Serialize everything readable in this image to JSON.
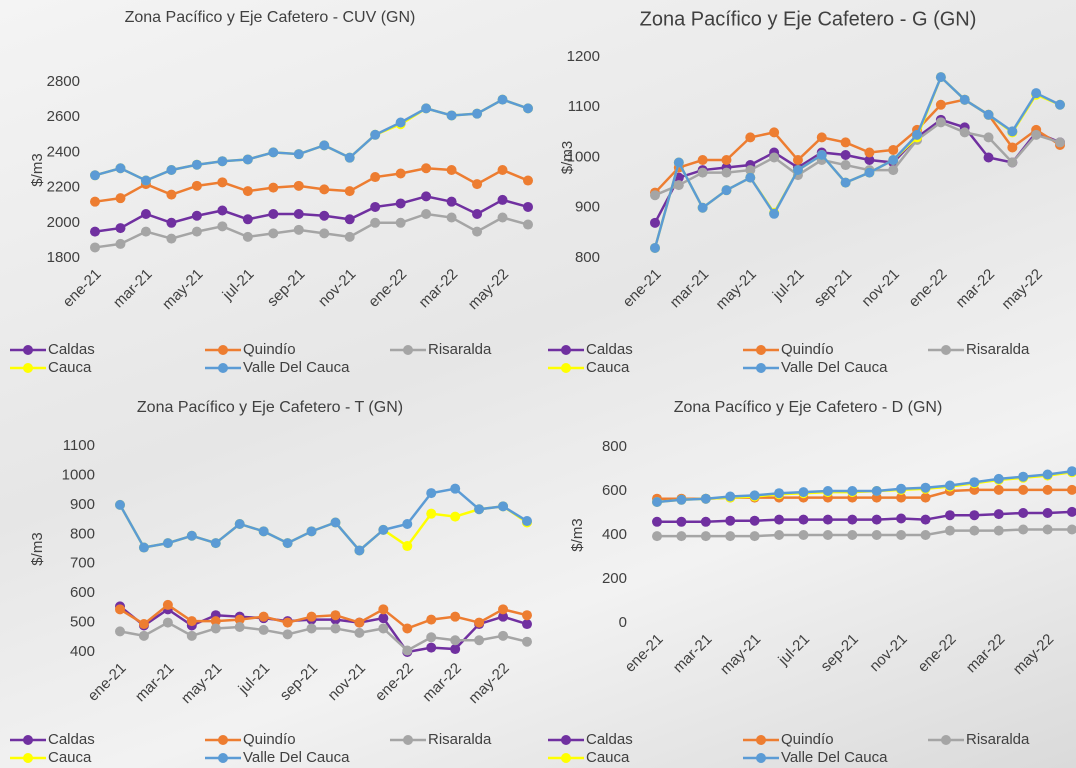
{
  "chart_data": [
    {
      "type": "line",
      "title": "Zona Pacífico y Eje Cafetero  - CUV (GN)",
      "y_label": "$/m3",
      "categories": [
        "ene-21",
        null,
        "mar-21",
        null,
        "may-21",
        null,
        "jul-21",
        null,
        "sep-21",
        null,
        "nov-21",
        null,
        "ene-22",
        null,
        "mar-22",
        null,
        "may-22",
        null
      ],
      "ylim": [
        1800,
        2800
      ],
      "yticks": [
        1800,
        2000,
        2200,
        2400,
        2600,
        2800
      ],
      "series": [
        {
          "name": "Caldas",
          "color": "#7030a0",
          "values": [
            1950,
            1970,
            2050,
            2000,
            2040,
            2070,
            2020,
            2050,
            2050,
            2040,
            2020,
            2090,
            2110,
            2150,
            2120,
            2050,
            2130,
            2090
          ]
        },
        {
          "name": "Quindío",
          "color": "#ed7d31",
          "values": [
            2120,
            2140,
            2220,
            2160,
            2210,
            2230,
            2180,
            2200,
            2210,
            2190,
            2180,
            2260,
            2280,
            2310,
            2300,
            2220,
            2300,
            2240
          ]
        },
        {
          "name": "Risaralda",
          "color": "#a5a5a5",
          "values": [
            1860,
            1880,
            1950,
            1910,
            1950,
            1980,
            1920,
            1940,
            1960,
            1940,
            1920,
            2000,
            2000,
            2050,
            2030,
            1950,
            2030,
            1990
          ]
        },
        {
          "name": "Cauca",
          "color": "#ffff00",
          "values": [
            2270,
            2310,
            2240,
            2300,
            2330,
            2350,
            2360,
            2400,
            2390,
            2440,
            2370,
            2500,
            2560,
            2650,
            2610,
            2620,
            2700,
            2650
          ]
        },
        {
          "name": "Valle Del Cauca",
          "color": "#5b9bd5",
          "values": [
            2270,
            2310,
            2240,
            2300,
            2330,
            2350,
            2360,
            2400,
            2390,
            2440,
            2370,
            2500,
            2570,
            2650,
            2610,
            2620,
            2700,
            2650
          ]
        }
      ]
    },
    {
      "type": "line",
      "title": "Zona Pacífico y Eje Cafetero  - G (GN)",
      "y_label": "$/m3",
      "categories": [
        "ene-21",
        null,
        "mar-21",
        null,
        "may-21",
        null,
        "jul-21",
        null,
        "sep-21",
        null,
        "nov-21",
        null,
        "ene-22",
        null,
        "mar-22",
        null,
        "may-22",
        null
      ],
      "ylim": [
        800,
        1200
      ],
      "yticks": [
        800,
        900,
        1000,
        1100,
        1200
      ],
      "series": [
        {
          "name": "Caldas",
          "color": "#7030a0",
          "values": [
            870,
            960,
            975,
            980,
            985,
            1010,
            980,
            1010,
            1005,
            995,
            990,
            1040,
            1075,
            1060,
            1000,
            990,
            1050,
            1030
          ]
        },
        {
          "name": "Quindío",
          "color": "#ed7d31",
          "values": [
            930,
            980,
            995,
            995,
            1040,
            1050,
            995,
            1040,
            1030,
            1010,
            1015,
            1055,
            1105,
            1115,
            1085,
            1020,
            1055,
            1025
          ]
        },
        {
          "name": "Risaralda",
          "color": "#a5a5a5",
          "values": [
            925,
            945,
            970,
            970,
            975,
            1000,
            965,
            995,
            985,
            975,
            975,
            1035,
            1070,
            1050,
            1040,
            990,
            1045,
            1030
          ]
        },
        {
          "name": "Cauca",
          "color": "#ffff00",
          "values": [
            820,
            990,
            900,
            935,
            960,
            890,
            975,
            1005,
            950,
            970,
            995,
            1040,
            1160,
            1115,
            1085,
            1050,
            1125,
            1105
          ]
        },
        {
          "name": "Valle Del Cauca",
          "color": "#5b9bd5",
          "values": [
            820,
            990,
            900,
            935,
            960,
            888,
            975,
            1005,
            950,
            970,
            995,
            1045,
            1160,
            1115,
            1085,
            1052,
            1128,
            1105
          ]
        }
      ]
    },
    {
      "type": "line",
      "title": "Zona Pacífico y Eje Cafetero  - T (GN)",
      "y_label": "$/m3",
      "categories": [
        "ene-21",
        null,
        "mar-21",
        null,
        "may-21",
        null,
        "jul-21",
        null,
        "sep-21",
        null,
        "nov-21",
        null,
        "ene-22",
        null,
        "mar-22",
        null,
        "may-22",
        null
      ],
      "ylim": [
        400,
        1100
      ],
      "yticks": [
        400,
        500,
        600,
        700,
        800,
        900,
        1000,
        1100
      ],
      "series": [
        {
          "name": "Caldas",
          "color": "#7030a0",
          "values": [
            555,
            490,
            545,
            490,
            525,
            520,
            515,
            505,
            510,
            510,
            500,
            515,
            400,
            415,
            410,
            495,
            520,
            495
          ]
        },
        {
          "name": "Quindío",
          "color": "#ed7d31",
          "values": [
            545,
            495,
            560,
            505,
            505,
            510,
            520,
            500,
            520,
            525,
            500,
            545,
            480,
            510,
            520,
            500,
            545,
            525
          ]
        },
        {
          "name": "Risaralda",
          "color": "#a5a5a5",
          "values": [
            470,
            455,
            500,
            455,
            480,
            485,
            475,
            460,
            480,
            480,
            465,
            480,
            405,
            450,
            440,
            440,
            455,
            435
          ]
        },
        {
          "name": "Cauca",
          "color": "#ffff00",
          "values": [
            900,
            755,
            770,
            795,
            770,
            835,
            810,
            770,
            810,
            840,
            745,
            815,
            760,
            870,
            860,
            885,
            895,
            840
          ]
        },
        {
          "name": "Valle Del Cauca",
          "color": "#5b9bd5",
          "values": [
            900,
            755,
            770,
            795,
            770,
            835,
            810,
            770,
            810,
            840,
            745,
            815,
            835,
            940,
            955,
            885,
            895,
            845
          ]
        }
      ]
    },
    {
      "type": "line",
      "title": "Zona Pacífico y Eje Cafetero  - D (GN)",
      "y_label": "$/m3",
      "categories": [
        "ene-21",
        null,
        "mar-21",
        null,
        "may-21",
        null,
        "jul-21",
        null,
        "sep-21",
        null,
        "nov-21",
        null,
        "ene-22",
        null,
        "mar-22",
        null,
        "may-22",
        null
      ],
      "ylim": [
        0,
        800
      ],
      "yticks": [
        0,
        200,
        400,
        600,
        800
      ],
      "series": [
        {
          "name": "Caldas",
          "color": "#7030a0",
          "values": [
            460,
            460,
            460,
            465,
            465,
            470,
            470,
            470,
            470,
            470,
            475,
            470,
            490,
            490,
            495,
            500,
            500,
            505
          ]
        },
        {
          "name": "Quindío",
          "color": "#ed7d31",
          "values": [
            565,
            565,
            565,
            570,
            570,
            570,
            570,
            570,
            570,
            570,
            570,
            570,
            600,
            605,
            605,
            605,
            605,
            605
          ]
        },
        {
          "name": "Risaralda",
          "color": "#a5a5a5",
          "values": [
            395,
            395,
            395,
            395,
            395,
            400,
            400,
            400,
            400,
            400,
            400,
            400,
            420,
            420,
            420,
            425,
            425,
            425
          ]
        },
        {
          "name": "Cauca",
          "color": "#ffff00",
          "values": [
            550,
            560,
            565,
            570,
            575,
            585,
            590,
            595,
            595,
            600,
            605,
            610,
            620,
            635,
            650,
            660,
            670,
            685
          ]
        },
        {
          "name": "Valle Del Cauca",
          "color": "#5b9bd5",
          "values": [
            550,
            560,
            565,
            575,
            580,
            590,
            595,
            600,
            600,
            600,
            610,
            615,
            625,
            640,
            655,
            665,
            675,
            690
          ]
        }
      ]
    }
  ]
}
